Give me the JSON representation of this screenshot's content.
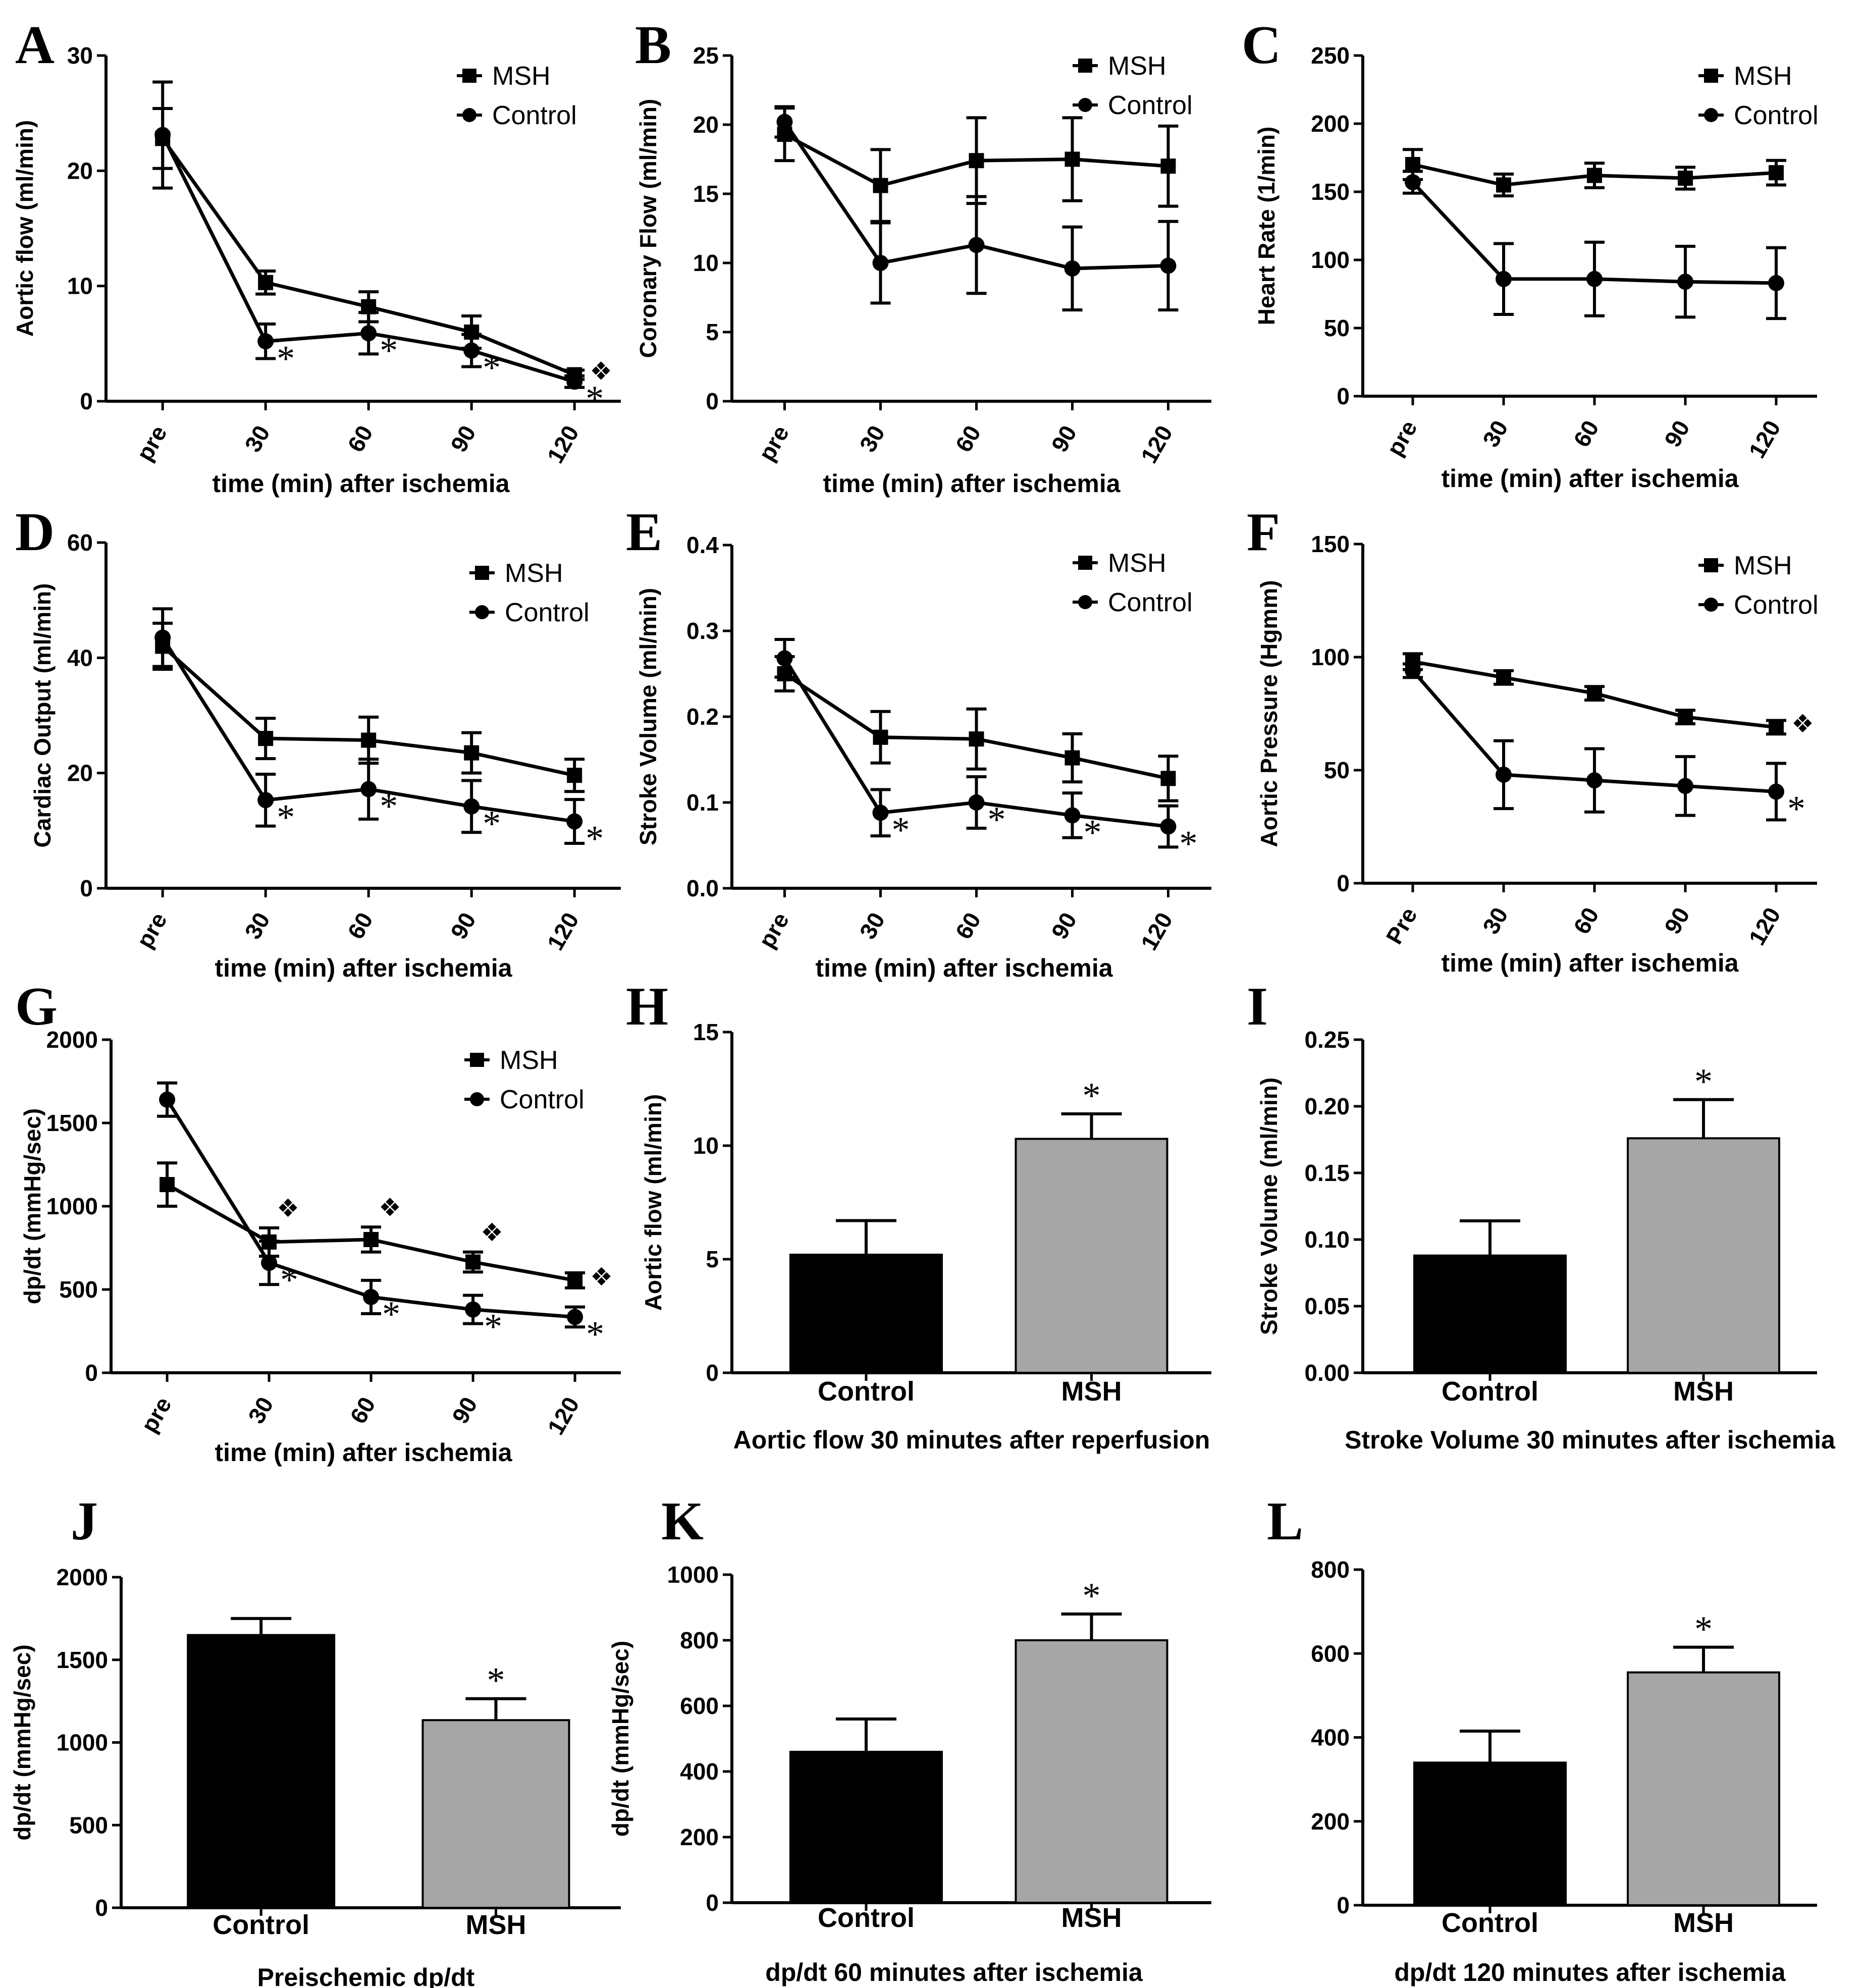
{
  "chart_data": [
    {
      "id": "A",
      "type": "line",
      "panel_label": "A",
      "xlabel": "time (min) after ischemia",
      "ylabel": "Aortic flow (ml/min)",
      "categories": [
        "pre",
        "30",
        "60",
        "90",
        "120"
      ],
      "ylim": [
        0,
        30
      ],
      "yticks": [
        0,
        10,
        20,
        30
      ],
      "legend": [
        "MSH",
        "Control"
      ],
      "legend_position": "top-right",
      "series": [
        {
          "name": "MSH",
          "marker": "square",
          "values": [
            22.8,
            10.3,
            8.2,
            6.0,
            2.3
          ],
          "err": [
            2.6,
            1.0,
            1.3,
            1.4,
            0.4
          ]
        },
        {
          "name": "Control",
          "marker": "circle",
          "values": [
            23.1,
            5.2,
            5.9,
            4.4,
            1.7
          ],
          "err": [
            4.6,
            1.5,
            1.8,
            1.4,
            0.5
          ]
        }
      ],
      "annotations": [
        {
          "series": "Control",
          "index": 1,
          "symbol": "*"
        },
        {
          "series": "Control",
          "index": 2,
          "symbol": "*"
        },
        {
          "series": "Control",
          "index": 3,
          "symbol": "*"
        },
        {
          "series": "Control",
          "index": 4,
          "symbol": "*"
        },
        {
          "series": "MSH",
          "index": 4,
          "symbol": "❖"
        }
      ]
    },
    {
      "id": "B",
      "type": "line",
      "panel_label": "B",
      "xlabel": "time (min) after ischemia",
      "ylabel": "Coronary Flow (ml/min)",
      "categories": [
        "pre",
        "30",
        "60",
        "90",
        "120"
      ],
      "ylim": [
        0,
        25
      ],
      "yticks": [
        0,
        5,
        10,
        15,
        20,
        25
      ],
      "legend": [
        "MSH",
        "Control"
      ],
      "legend_position": "top-right",
      "series": [
        {
          "name": "MSH",
          "marker": "square",
          "values": [
            19.3,
            15.6,
            17.4,
            17.5,
            17.0
          ],
          "err": [
            1.9,
            2.6,
            3.1,
            3.0,
            2.9
          ]
        },
        {
          "name": "Control",
          "marker": "circle",
          "values": [
            20.2,
            10.0,
            11.3,
            9.6,
            9.8
          ],
          "err": [
            1.1,
            2.9,
            3.5,
            3.0,
            3.2
          ]
        }
      ],
      "annotations": []
    },
    {
      "id": "C",
      "type": "line",
      "panel_label": "C",
      "xlabel": "time (min) after ischemia",
      "ylabel": "Heart Rate (1/min)",
      "categories": [
        "pre",
        "30",
        "60",
        "90",
        "120"
      ],
      "ylim": [
        0,
        250
      ],
      "yticks": [
        0,
        50,
        100,
        150,
        200,
        250
      ],
      "legend": [
        "MSH",
        "Control"
      ],
      "legend_position": "top-right",
      "series": [
        {
          "name": "MSH",
          "marker": "square",
          "values": [
            170,
            155,
            162,
            160,
            164
          ],
          "err": [
            11,
            8,
            9,
            8,
            9
          ]
        },
        {
          "name": "Control",
          "marker": "circle",
          "values": [
            157,
            86,
            86,
            84,
            83
          ],
          "err": [
            8,
            26,
            27,
            26,
            26
          ]
        }
      ],
      "annotations": []
    },
    {
      "id": "D",
      "type": "line",
      "panel_label": "D",
      "xlabel": "time (min) after ischemia",
      "ylabel": "Cardiac Output (ml/min)",
      "categories": [
        "pre",
        "30",
        "60",
        "90",
        "120"
      ],
      "ylim": [
        0,
        60
      ],
      "yticks": [
        0,
        20,
        40,
        60
      ],
      "legend": [
        "MSH",
        "Control"
      ],
      "legend_position": "top-right",
      "series": [
        {
          "name": "MSH",
          "marker": "square",
          "values": [
            42.0,
            26.0,
            25.7,
            23.5,
            19.6
          ],
          "err": [
            4.0,
            3.5,
            4.0,
            3.5,
            2.8
          ]
        },
        {
          "name": "Control",
          "marker": "circle",
          "values": [
            43.5,
            15.3,
            17.2,
            14.2,
            11.6
          ],
          "err": [
            5.0,
            4.5,
            5.2,
            4.5,
            3.8
          ]
        }
      ],
      "annotations": [
        {
          "series": "Control",
          "index": 1,
          "symbol": "*"
        },
        {
          "series": "Control",
          "index": 2,
          "symbol": "*"
        },
        {
          "series": "Control",
          "index": 3,
          "symbol": "*"
        },
        {
          "series": "Control",
          "index": 4,
          "symbol": "*"
        }
      ]
    },
    {
      "id": "E",
      "type": "line",
      "panel_label": "E",
      "xlabel": "time (min) after ischemia",
      "ylabel": "Stroke Volume (ml/min)",
      "categories": [
        "pre",
        "30",
        "60",
        "90",
        "120"
      ],
      "ylim": [
        0,
        0.4
      ],
      "yticks": [
        0.0,
        0.1,
        0.2,
        0.3,
        0.4
      ],
      "tick_labels": [
        "0.0",
        "0.1",
        "0.2",
        "0.3",
        "0.4"
      ],
      "legend": [
        "MSH",
        "Control"
      ],
      "legend_position": "top-right",
      "series": [
        {
          "name": "MSH",
          "marker": "square",
          "values": [
            0.25,
            0.176,
            0.174,
            0.152,
            0.128
          ],
          "err": [
            0.02,
            0.03,
            0.035,
            0.028,
            0.026
          ]
        },
        {
          "name": "Control",
          "marker": "circle",
          "values": [
            0.268,
            0.088,
            0.1,
            0.085,
            0.072
          ],
          "err": [
            0.022,
            0.027,
            0.03,
            0.026,
            0.024
          ]
        }
      ],
      "annotations": [
        {
          "series": "Control",
          "index": 1,
          "symbol": "*"
        },
        {
          "series": "Control",
          "index": 2,
          "symbol": "*"
        },
        {
          "series": "Control",
          "index": 3,
          "symbol": "*"
        },
        {
          "series": "Control",
          "index": 4,
          "symbol": "*"
        }
      ]
    },
    {
      "id": "F",
      "type": "line",
      "panel_label": "F",
      "xlabel": "time (min) after ischemia",
      "ylabel": "Aortic Pressure (Hgmm)",
      "categories": [
        "Pre",
        "30",
        "60",
        "90",
        "120"
      ],
      "ylim": [
        0,
        150
      ],
      "yticks": [
        0,
        50,
        100,
        150
      ],
      "legend": [
        "MSH",
        "Control"
      ],
      "legend_position": "top-right",
      "series": [
        {
          "name": "MSH",
          "marker": "square",
          "values": [
            98,
            91,
            84,
            73.5,
            69
          ],
          "err": [
            3.5,
            3,
            3,
            3,
            3
          ]
        },
        {
          "name": "Control",
          "marker": "circle",
          "values": [
            94,
            48,
            45.5,
            43,
            40.5
          ],
          "err": [
            3,
            15,
            14,
            13,
            12.5
          ]
        }
      ],
      "annotations": [
        {
          "series": "Control",
          "index": 4,
          "symbol": "*"
        },
        {
          "series": "MSH",
          "index": 4,
          "symbol": "❖"
        }
      ]
    },
    {
      "id": "G",
      "type": "line",
      "panel_label": "G",
      "xlabel": "time (min) after ischemia",
      "ylabel": "dp/dt (mmHg/sec)",
      "categories": [
        "pre",
        "30",
        "60",
        "90",
        "120"
      ],
      "ylim": [
        0,
        2000
      ],
      "yticks": [
        0,
        500,
        1000,
        1500,
        2000
      ],
      "legend": [
        "MSH",
        "Control"
      ],
      "legend_position": "top-right",
      "series": [
        {
          "name": "MSH",
          "marker": "square",
          "values": [
            1130,
            785,
            800,
            665,
            555
          ],
          "err": [
            130,
            85,
            75,
            60,
            45
          ]
        },
        {
          "name": "Control",
          "marker": "circle",
          "values": [
            1640,
            660,
            455,
            380,
            335
          ],
          "err": [
            100,
            130,
            100,
            85,
            60
          ]
        }
      ],
      "annotations": [
        {
          "series": "Control",
          "index": 1,
          "symbol": "*"
        },
        {
          "series": "Control",
          "index": 2,
          "symbol": "*"
        },
        {
          "series": "Control",
          "index": 3,
          "symbol": "*"
        },
        {
          "series": "Control",
          "index": 4,
          "symbol": "*"
        },
        {
          "series": "MSH",
          "index": 1,
          "symbol": "❖"
        },
        {
          "series": "MSH",
          "index": 2,
          "symbol": "❖"
        },
        {
          "series": "MSH",
          "index": 3,
          "symbol": "❖"
        },
        {
          "series": "MSH",
          "index": 4,
          "symbol": "❖"
        }
      ]
    },
    {
      "id": "H",
      "type": "bar",
      "panel_label": "H",
      "xlabel": "Aortic flow 30 minutes after reperfusion",
      "ylabel": "Aortic flow (ml/min)",
      "categories": [
        "Control",
        "MSH"
      ],
      "values": [
        5.2,
        10.3
      ],
      "err": [
        1.5,
        1.1
      ],
      "colors": [
        "#000000",
        "#a6a6a6"
      ],
      "ylim": [
        0,
        15
      ],
      "yticks": [
        0,
        5,
        10,
        15
      ],
      "significance": [
        {
          "index": 1,
          "symbol": "*"
        }
      ]
    },
    {
      "id": "I",
      "type": "bar",
      "panel_label": "I",
      "xlabel": "Stroke Volume 30 minutes after ischemia",
      "ylabel": "Stroke Volume (ml/min)",
      "categories": [
        "Control",
        "MSH"
      ],
      "values": [
        0.088,
        0.176
      ],
      "err": [
        0.026,
        0.029
      ],
      "colors": [
        "#000000",
        "#a6a6a6"
      ],
      "ylim": [
        0,
        0.25
      ],
      "yticks": [
        0,
        0.05,
        0.1,
        0.15,
        0.2,
        0.25
      ],
      "tick_labels": [
        "0.00",
        "0.05",
        "0.10",
        "0.15",
        "0.20",
        "0.25"
      ],
      "significance": [
        {
          "index": 1,
          "symbol": "*"
        }
      ]
    },
    {
      "id": "J",
      "type": "bar",
      "panel_label": "J",
      "xlabel": "Preischemic dp/dt",
      "ylabel": "dp/dt (mmHg/sec)",
      "categories": [
        "Control",
        "MSH"
      ],
      "values": [
        1650,
        1135
      ],
      "err": [
        100,
        130
      ],
      "colors": [
        "#000000",
        "#a6a6a6"
      ],
      "ylim": [
        0,
        2000
      ],
      "yticks": [
        0,
        500,
        1000,
        1500,
        2000
      ],
      "significance": [
        {
          "index": 1,
          "symbol": "*"
        }
      ]
    },
    {
      "id": "K",
      "type": "bar",
      "panel_label": "K",
      "xlabel": "dp/dt 60 minutes after ischemia",
      "ylabel": "dp/dt (mmHg/sec)",
      "categories": [
        "Control",
        "MSH"
      ],
      "values": [
        460,
        800
      ],
      "err": [
        100,
        80
      ],
      "colors": [
        "#000000",
        "#a6a6a6"
      ],
      "ylim": [
        0,
        1000
      ],
      "yticks": [
        0,
        200,
        400,
        600,
        800,
        1000
      ],
      "significance": [
        {
          "index": 1,
          "symbol": "*"
        }
      ]
    },
    {
      "id": "L",
      "type": "bar",
      "panel_label": "L",
      "xlabel": "dp/dt 120 minutes after ischemia",
      "ylabel": "",
      "categories": [
        "Control",
        "MSH"
      ],
      "values": [
        340,
        555
      ],
      "err": [
        75,
        60
      ],
      "colors": [
        "#000000",
        "#a6a6a6"
      ],
      "ylim": [
        0,
        800
      ],
      "yticks": [
        0,
        200,
        400,
        600,
        800
      ],
      "significance": [
        {
          "index": 1,
          "symbol": "*"
        }
      ]
    }
  ]
}
